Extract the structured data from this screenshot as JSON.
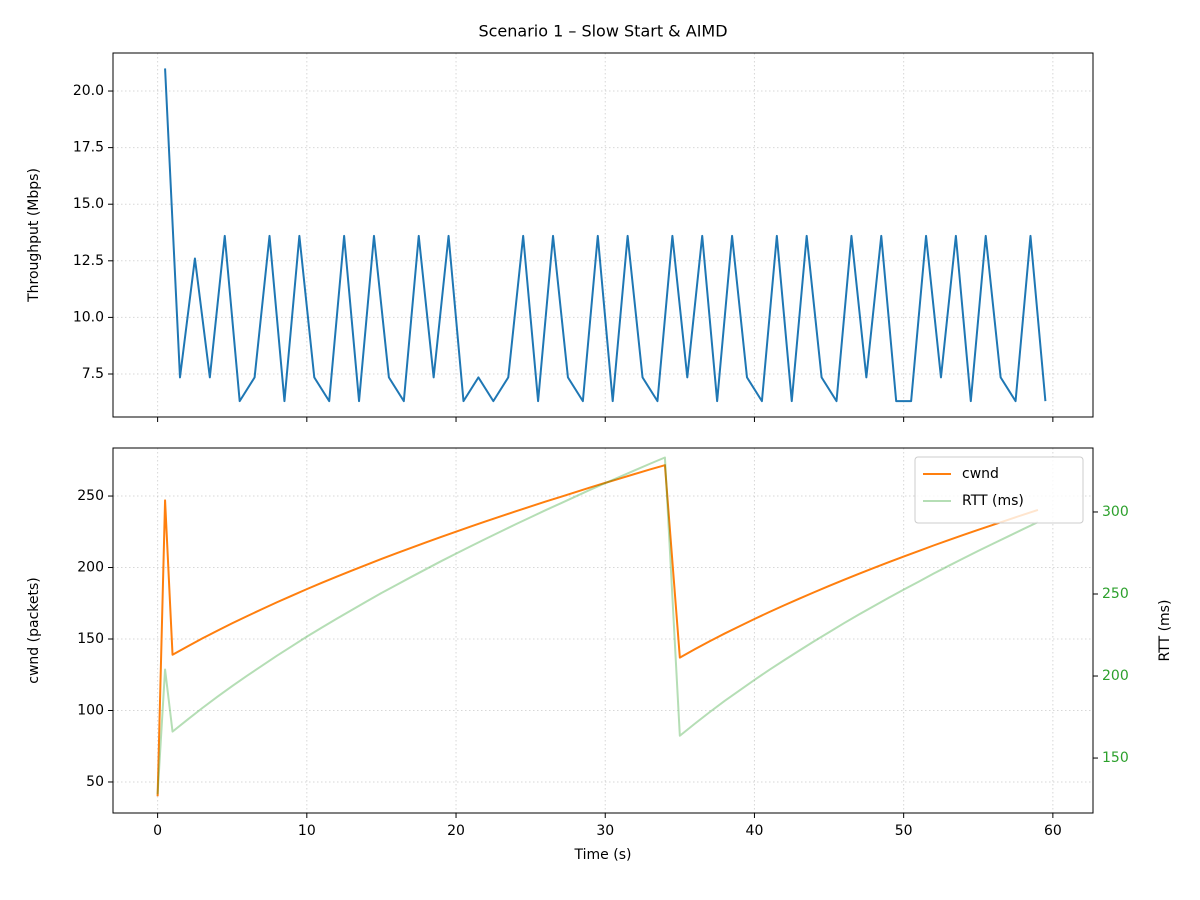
{
  "chart_data": [
    {
      "type": "line",
      "title": "Scenario 1 – Slow Start & AIMD",
      "ylabel": "Throughput (Mbps)",
      "x": [
        0.5,
        1.5,
        2.5,
        3.5,
        4.5,
        5.5,
        6.5,
        7.5,
        8.5,
        9.5,
        10.5,
        11.5,
        12.5,
        13.5,
        14.5,
        15.5,
        16.5,
        17.5,
        18.5,
        19.5,
        20.5,
        21.5,
        22.5,
        23.5,
        24.5,
        25.5,
        26.5,
        27.5,
        28.5,
        29.5,
        30.5,
        31.5,
        32.5,
        33.5,
        34.5,
        35.5,
        36.5,
        37.5,
        38.5,
        39.5,
        40.5,
        41.5,
        42.5,
        43.5,
        44.5,
        45.5,
        46.5,
        47.5,
        48.5,
        49.5,
        50.5,
        51.5,
        52.5,
        53.5,
        54.5,
        55.5,
        56.5,
        57.5,
        58.5,
        59.5
      ],
      "series": [
        {
          "color": "#1f77b4",
          "values": [
            21.0,
            7.35,
            12.6,
            7.35,
            13.6,
            6.3,
            7.35,
            13.6,
            6.3,
            13.6,
            7.35,
            6.3,
            13.6,
            6.3,
            13.6,
            7.35,
            6.3,
            13.6,
            7.35,
            13.6,
            6.3,
            7.35,
            6.3,
            7.35,
            13.6,
            6.3,
            13.6,
            7.35,
            6.3,
            13.6,
            6.3,
            13.6,
            7.35,
            6.3,
            13.6,
            7.35,
            13.6,
            6.3,
            13.6,
            7.35,
            6.3,
            13.6,
            6.3,
            13.6,
            7.35,
            6.3,
            13.6,
            7.35,
            13.6,
            6.3,
            6.3,
            13.6,
            7.35,
            13.6,
            6.3,
            13.6,
            7.35,
            6.3,
            13.6,
            6.3
          ]
        }
      ],
      "xlim": [
        -2.99,
        62.69
      ],
      "xticks": [
        0,
        10,
        20,
        30,
        40,
        50,
        60
      ],
      "show_xtick_labels": false,
      "ylim": [
        5.6,
        21.68
      ],
      "yticks": [
        7.5,
        {
          "value": 10,
          "label": "10.0"
        },
        12.5,
        {
          "value": 15,
          "label": "15.0"
        },
        17.5,
        {
          "value": 20,
          "label": "20.0"
        }
      ],
      "grid": true
    },
    {
      "type": "line",
      "xlabel": "Time (s)",
      "ylabel": "cwnd (packets)",
      "y2label": "RTT (ms)",
      "x": [
        0,
        0.5,
        1,
        2,
        3,
        4,
        5,
        6,
        7,
        8,
        9,
        10,
        11,
        12,
        13,
        14,
        15,
        16,
        17,
        18,
        19,
        20,
        21,
        22,
        23,
        24,
        25,
        26,
        27,
        28,
        29,
        30,
        31,
        32,
        33,
        34,
        35,
        36,
        37,
        38,
        39,
        40,
        41,
        42,
        43,
        44,
        45,
        46,
        47,
        48,
        49,
        50,
        51,
        52,
        53,
        54,
        55,
        56,
        57,
        58,
        59
      ],
      "series": [
        {
          "name": "cwnd",
          "color": "#ff7f0e",
          "values": [
            40,
            247,
            139,
            144.8,
            150.4,
            155.8,
            161.0,
            166.0,
            170.9,
            175.7,
            180.3,
            184.9,
            189.3,
            193.6,
            197.8,
            201.9,
            206.0,
            209.9,
            213.8,
            217.6,
            221.4,
            225.1,
            228.7,
            232.3,
            235.8,
            239.3,
            242.7,
            246.1,
            249.4,
            252.7,
            256.0,
            259.2,
            262.3,
            265.5,
            268.6,
            271.6,
            137,
            142.8,
            148.4,
            153.8,
            158.9,
            164.0,
            168.9,
            173.6,
            178.2,
            182.7,
            187.1,
            191.4,
            195.6,
            199.7,
            203.7,
            207.7,
            211.5,
            215.4,
            219.1,
            222.8,
            226.4,
            229.9,
            233.4,
            236.9,
            240.3
          ]
        },
        {
          "name": "RTT (ms)",
          "color": "#2ca02c",
          "alpha": 0.35,
          "axis": "y2",
          "values": [
            128,
            204,
            166.1,
            173.4,
            180.5,
            187.3,
            193.9,
            200.2,
            206.3,
            212.4,
            218.2,
            224.0,
            229.5,
            234.9,
            240.2,
            245.4,
            250.6,
            255.5,
            260.4,
            265.2,
            270.0,
            274.6,
            279.2,
            283.7,
            288.1,
            292.5,
            296.8,
            301.1,
            305.2,
            309.4,
            313.6,
            317.6,
            321.5,
            325.5,
            329.4,
            333.2,
            163.6,
            170.9,
            178.0,
            184.8,
            191.2,
            197.6,
            203.8,
            209.7,
            215.5,
            221.2,
            226.7,
            232.2,
            237.5,
            242.6,
            247.7,
            252.7,
            257.5,
            262.4,
            267.1,
            271.7,
            276.3,
            280.7,
            285.1,
            289.5,
            293.8
          ]
        }
      ],
      "xlim": [
        -2.99,
        62.69
      ],
      "xticks": [
        0,
        10,
        20,
        30,
        40,
        50,
        60
      ],
      "ylim": [
        28.3,
        283.6
      ],
      "yticks": [
        50,
        100,
        150,
        200,
        250
      ],
      "y2lim": [
        116.5,
        339
      ],
      "y2ticks": [
        150,
        200,
        250,
        300
      ],
      "y2_tick_color": "#2ca02c",
      "grid": true,
      "legend": "upper right"
    }
  ]
}
